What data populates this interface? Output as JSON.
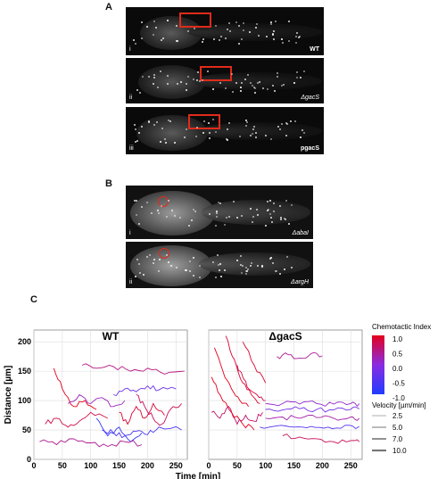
{
  "panels": {
    "A": {
      "label": "A",
      "images": [
        {
          "sub": "i",
          "genotype": "WT",
          "box_present": true
        },
        {
          "sub": "ii",
          "genotype": "ΔgacS",
          "box_present": true
        },
        {
          "sub": "iii",
          "genotype": "pgacS",
          "box_present": true
        }
      ]
    },
    "B": {
      "label": "B",
      "images": [
        {
          "sub": "i",
          "genotype": "ΔabaI",
          "circle_present": true
        },
        {
          "sub": "ii",
          "genotype": "ΔargH",
          "circle_present": true
        }
      ]
    },
    "C": {
      "label": "C"
    }
  },
  "chart_data": [
    {
      "type": "line",
      "title": "WT",
      "xlabel": "Time [min]",
      "ylabel": "Distance [µm]",
      "xlim": [
        0,
        270
      ],
      "ylim": [
        0,
        220
      ],
      "x_ticks": [
        "0",
        "50",
        "100",
        "150",
        "200",
        "250"
      ],
      "y_ticks": [
        "0",
        "50",
        "100",
        "150",
        "200"
      ],
      "grid": true,
      "series_note": "cell tracks colored by chemotactic index",
      "tracks": [
        {
          "x": [
            20,
            40,
            60,
            80,
            100,
            130
          ],
          "y": [
            60,
            70,
            55,
            65,
            80,
            70
          ],
          "ci": 0.8
        },
        {
          "x": [
            35,
            50,
            70,
            90,
            110
          ],
          "y": [
            155,
            120,
            90,
            100,
            85
          ],
          "ci": 1.0
        },
        {
          "x": [
            60,
            80,
            100,
            120,
            140,
            160
          ],
          "y": [
            95,
            110,
            95,
            105,
            90,
            100
          ],
          "ci": 0.2
        },
        {
          "x": [
            85,
            110,
            140,
            170,
            200,
            230,
            265
          ],
          "y": [
            160,
            155,
            158,
            150,
            155,
            145,
            150
          ],
          "ci": 0.5
        },
        {
          "x": [
            110,
            130,
            150,
            170,
            190
          ],
          "y": [
            70,
            40,
            55,
            30,
            45
          ],
          "ci": -0.8
        },
        {
          "x": [
            140,
            160,
            180,
            200,
            220,
            250
          ],
          "y": [
            110,
            120,
            115,
            125,
            118,
            120
          ],
          "ci": -0.3
        },
        {
          "x": [
            150,
            165,
            180,
            195,
            210,
            230
          ],
          "y": [
            80,
            60,
            90,
            70,
            95,
            75
          ],
          "ci": 0.9
        },
        {
          "x": [
            10,
            40,
            70,
            100,
            130,
            160,
            190
          ],
          "y": [
            30,
            25,
            35,
            28,
            22,
            30,
            25
          ],
          "ci": 0.4
        },
        {
          "x": [
            120,
            140,
            160,
            180,
            200,
            220,
            260
          ],
          "y": [
            50,
            45,
            40,
            48,
            42,
            55,
            50
          ],
          "ci": -0.6
        },
        {
          "x": [
            180,
            195,
            210,
            225,
            240,
            260
          ],
          "y": [
            110,
            90,
            70,
            60,
            85,
            95
          ],
          "ci": 0.7
        }
      ]
    },
    {
      "type": "line",
      "title": "ΔgacS",
      "xlabel": "Time [min]",
      "ylabel": "",
      "xlim": [
        0,
        270
      ],
      "ylim": [
        0,
        220
      ],
      "x_ticks": [
        "0",
        "50",
        "100",
        "150",
        "200",
        "250"
      ],
      "grid": true,
      "series_note": "cell tracks colored by chemotactic index",
      "tracks": [
        {
          "x": [
            10,
            25,
            40,
            55,
            70
          ],
          "y": [
            190,
            150,
            120,
            100,
            90
          ],
          "ci": 1.0
        },
        {
          "x": [
            30,
            45,
            60,
            75,
            90
          ],
          "y": [
            210,
            170,
            130,
            110,
            95
          ],
          "ci": 0.9
        },
        {
          "x": [
            50,
            60,
            70,
            85,
            100
          ],
          "y": [
            160,
            140,
            120,
            110,
            100
          ],
          "ci": 0.8
        },
        {
          "x": [
            5,
            20,
            35,
            50,
            65,
            80,
            95
          ],
          "y": [
            80,
            70,
            90,
            60,
            75,
            65,
            80
          ],
          "ci": 0.6
        },
        {
          "x": [
            100,
            130,
            160,
            190,
            220,
            250,
            265
          ],
          "y": [
            95,
            95,
            94,
            95,
            94,
            95,
            95
          ],
          "ci": 0.1
        },
        {
          "x": [
            100,
            130,
            160,
            190,
            220,
            250,
            265
          ],
          "y": [
            85,
            84,
            86,
            85,
            84,
            85,
            86
          ],
          "ci": -0.2
        },
        {
          "x": [
            100,
            130,
            160,
            190,
            220,
            250,
            265
          ],
          "y": [
            70,
            72,
            70,
            71,
            70,
            72,
            70
          ],
          "ci": 0.3
        },
        {
          "x": [
            90,
            120,
            150,
            180,
            210,
            240,
            265
          ],
          "y": [
            55,
            57,
            55,
            56,
            55,
            58,
            56
          ],
          "ci": -0.5
        },
        {
          "x": [
            120,
            140,
            160,
            180,
            200
          ],
          "y": [
            175,
            178,
            172,
            180,
            176
          ],
          "ci": 0.4
        },
        {
          "x": [
            130,
            160,
            190,
            220,
            250,
            265
          ],
          "y": [
            40,
            38,
            35,
            30,
            32,
            30
          ],
          "ci": 0.7
        },
        {
          "x": [
            5,
            20,
            40,
            60,
            80
          ],
          "y": [
            140,
            110,
            80,
            60,
            50
          ],
          "ci": 1.0
        },
        {
          "x": [
            60,
            80,
            100
          ],
          "y": [
            200,
            160,
            130
          ],
          "ci": 0.9
        }
      ]
    }
  ],
  "legend": {
    "ci_title": "Chemotactic Index",
    "ci_ticks": [
      "1.0",
      "0.5",
      "0.0",
      "-0.5",
      "-1.0"
    ],
    "vel_title": "Velocity [µm/min]",
    "vel_items": [
      "2.5",
      "5.0",
      "7.0",
      "10.0"
    ]
  },
  "colors": {
    "ci_high": "#e3001b",
    "ci_mid": "#8a2be2",
    "ci_low": "#1f3cff",
    "box": "#e02b1a"
  }
}
